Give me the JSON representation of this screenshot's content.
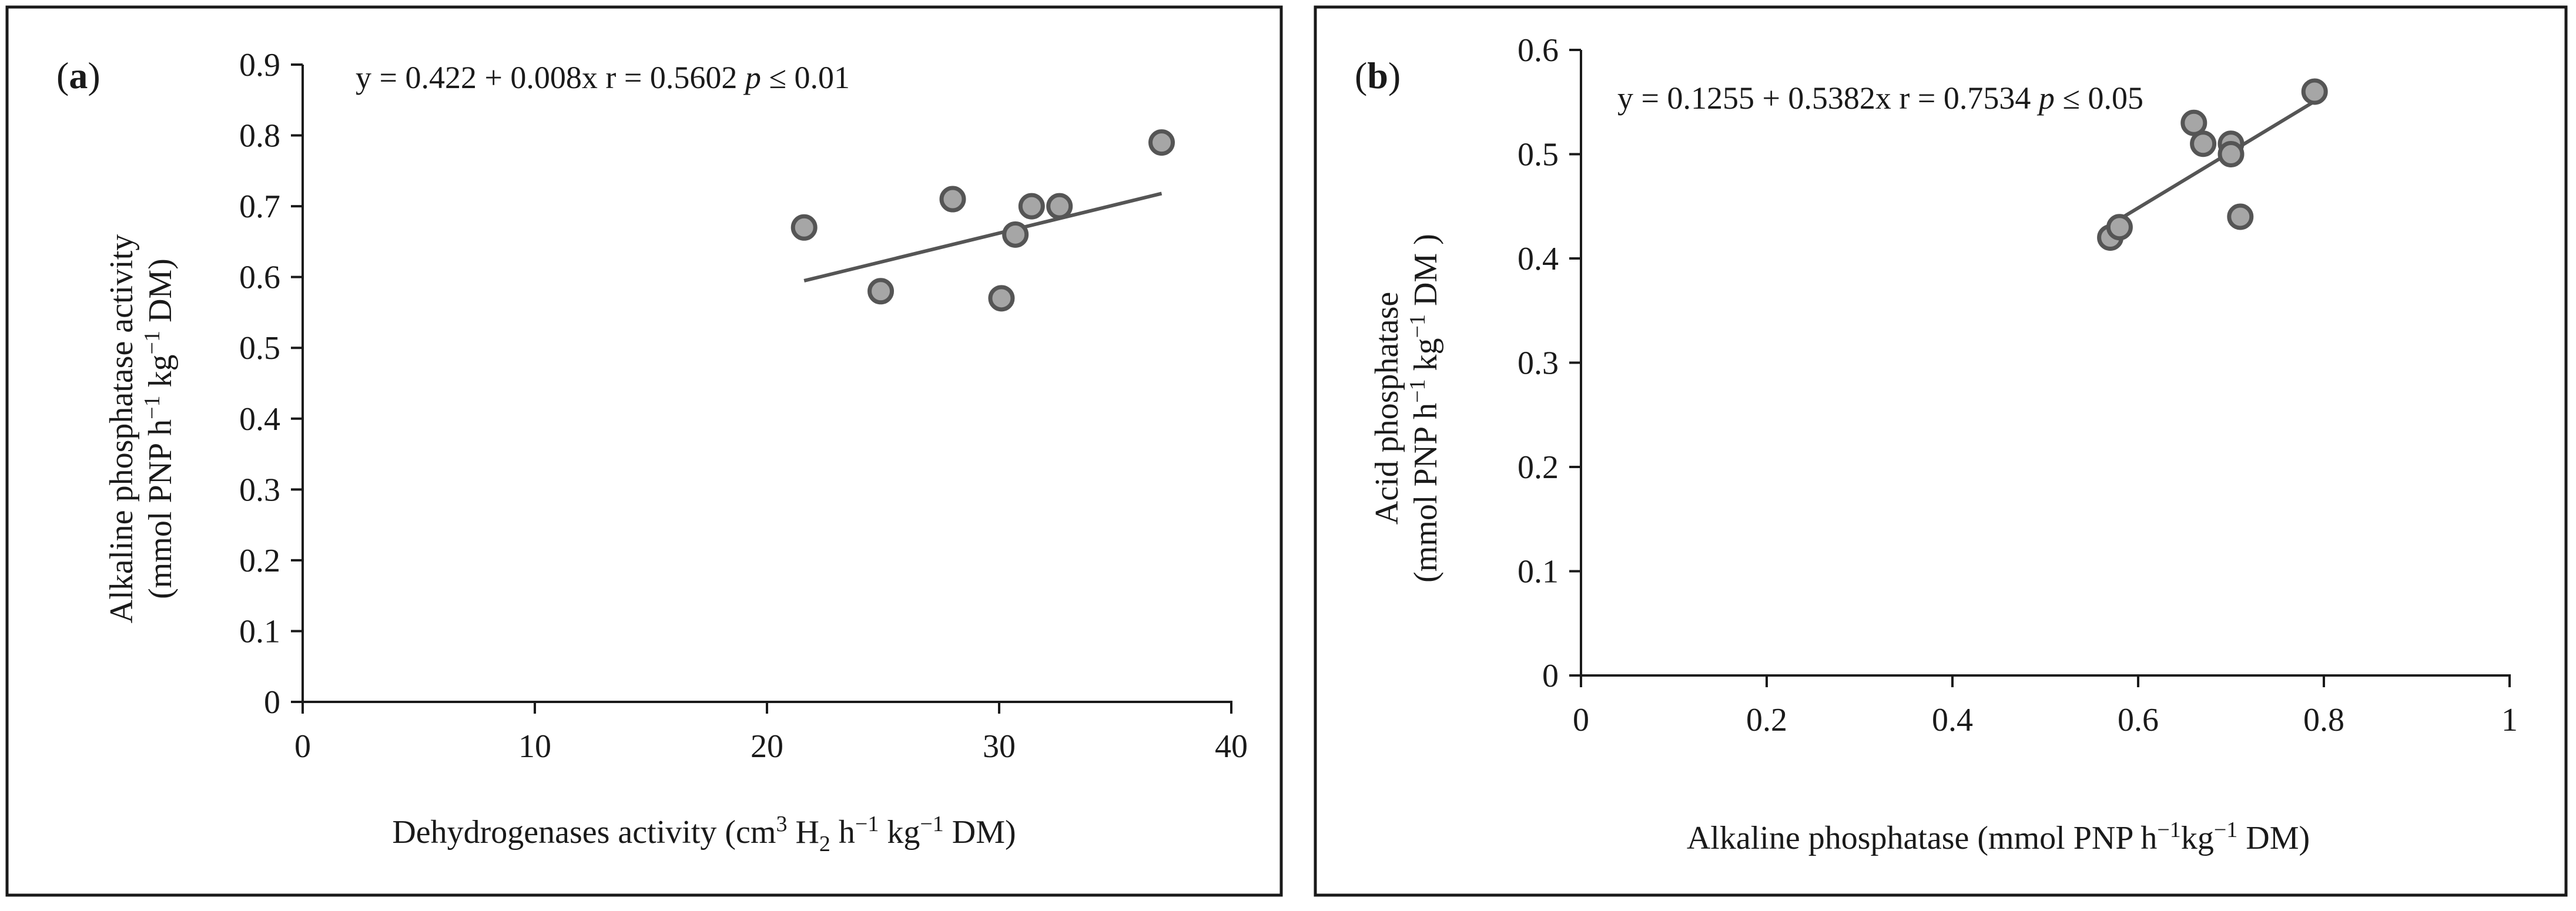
{
  "chart_data": [
    {
      "type": "scatter",
      "panel_label": {
        "open": "(",
        "letter": "a",
        "close": ")"
      },
      "equation": {
        "text": "y = 0.422 + 0.008x  r = 0.5602 ",
        "p": "p",
        "rest": " ≤ 0.01"
      },
      "fit": {
        "intercept": 0.422,
        "slope": 0.008,
        "x_range": [
          21.6,
          37
        ]
      },
      "x": [
        21.6,
        24.9,
        28,
        30.1,
        30.7,
        31.4,
        32.6,
        37
      ],
      "y": [
        0.67,
        0.58,
        0.71,
        0.57,
        0.66,
        0.7,
        0.7,
        0.79
      ],
      "xlim": [
        0,
        40
      ],
      "ylim": [
        0,
        0.9
      ],
      "xticks": [
        "0",
        "10",
        "20",
        "30",
        "40"
      ],
      "yticks": [
        "0",
        "0.1",
        "0.2",
        "0.3",
        "0.4",
        "0.5",
        "0.6",
        "0.7",
        "0.8",
        "0.9"
      ],
      "xlabel": {
        "pre": "Dehydrogenases activity (cm",
        "sup1": "3",
        "mid1": " H",
        "sub": "2",
        "mid2": " h",
        "sup2": "−1",
        "mid3": " kg",
        "sup3": "−1",
        "post": " DM)"
      },
      "ylabel": {
        "line1": "Alkaline phosphatase activity",
        "line2": {
          "pre": "(mmol PNP h",
          "sup1": "−1",
          "mid": " kg",
          "sup2": "−1",
          "post": " DM)"
        }
      }
    },
    {
      "type": "scatter",
      "panel_label": {
        "open": "(",
        "letter": "b",
        "close": ")"
      },
      "equation": {
        "text": "y = 0.1255 + 0.5382x  r = 0.7534  ",
        "p": "p",
        "rest": " ≤ 0.05"
      },
      "fit": {
        "intercept": 0.1255,
        "slope": 0.5382,
        "x_range": [
          0.57,
          0.79
        ]
      },
      "x": [
        0.57,
        0.58,
        0.66,
        0.67,
        0.7,
        0.7,
        0.71,
        0.79
      ],
      "y": [
        0.42,
        0.43,
        0.53,
        0.51,
        0.51,
        0.5,
        0.44,
        0.56
      ],
      "xlim": [
        0,
        1
      ],
      "ylim": [
        0,
        0.6
      ],
      "xticks": [
        "0",
        "0.2",
        "0.4",
        "0.6",
        "0.8",
        "1"
      ],
      "yticks": [
        "0",
        "0.1",
        "0.2",
        "0.3",
        "0.4",
        "0.5",
        "0.6"
      ],
      "xlabel": {
        "pre": "Alkaline phosphatase  (mmol PNP h",
        "sup1": "−1",
        "mid": "kg",
        "sup2": "−1",
        "post": " DM)"
      },
      "ylabel": {
        "line1": "Acid phosphatase",
        "line2": {
          "pre": "(mmol PNP h",
          "sup1": "−1",
          "mid": " kg",
          "sup2": "−1",
          "post": " DM )"
        }
      }
    }
  ]
}
